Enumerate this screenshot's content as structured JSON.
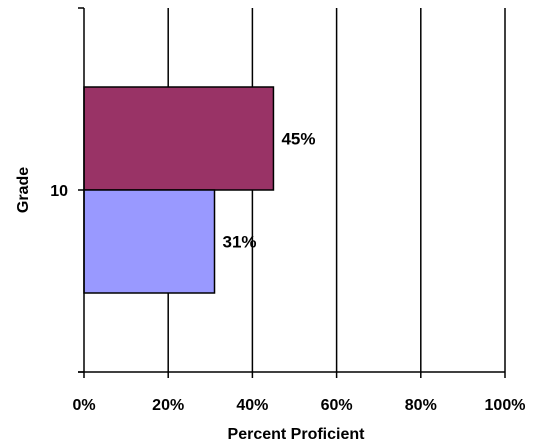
{
  "chart_data": {
    "type": "bar",
    "orientation": "horizontal",
    "categories": [
      "10"
    ],
    "series": [
      {
        "values": [
          45
        ],
        "color": "#993366",
        "value_label": "45%"
      },
      {
        "values": [
          31
        ],
        "color": "#9999ff",
        "value_label": "31%"
      }
    ],
    "xlabel": "Percent Proficient",
    "ylabel": "Grade",
    "xlim": [
      0,
      100
    ],
    "xticks": [
      0,
      20,
      40,
      60,
      80,
      100
    ],
    "xtick_labels": [
      "0%",
      "20%",
      "40%",
      "60%",
      "80%",
      "100%"
    ],
    "grid": "vertical",
    "legend": "none"
  }
}
